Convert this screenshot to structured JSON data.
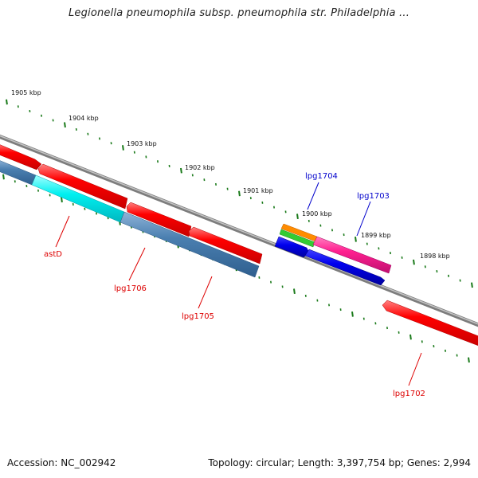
{
  "title": "Legionella pneumophila subsp. pneumophila str. Philadelphia ...",
  "footer": {
    "accession": "Accession: NC_002942",
    "summary": "Topology: circular; Length: 3,397,754 bp; Genes: 2,994"
  },
  "scale": {
    "tick_labels": [
      "1905 kbp",
      "1904 kbp",
      "1903 kbp",
      "1902 kbp",
      "1901 kbp",
      "1900 kbp",
      "1899 kbp",
      "1898 kbp"
    ]
  },
  "genes": {
    "astD": "astD",
    "lpg1706": "lpg1706",
    "lpg1705": "lpg1705",
    "lpg1704": "lpg1704",
    "lpg1703": "lpg1703",
    "lpg1702": "lpg1702"
  },
  "colors": {
    "background": "#ffffff",
    "backbone": "#8a8a8a",
    "tick": "#1a7a1a",
    "forward_gene": "#ff0000",
    "reverse_gene": "#4a7fb0",
    "cyan_gene": "#00e5e5",
    "orange_feature": "#ff8c00",
    "green_feature": "#33cc33",
    "magenta_feature": "#ff2090",
    "blue_feature": "#0000ee",
    "label_red": "#dd0000",
    "label_blue": "#0000cc"
  }
}
